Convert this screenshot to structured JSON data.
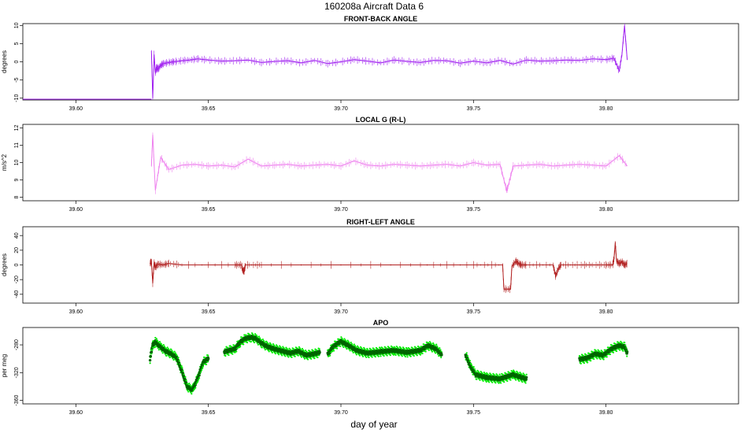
{
  "figure": {
    "title": "160208a   Aircraft Data 6",
    "xlabel": "day of year"
  },
  "chart_data": [
    {
      "type": "line",
      "title": "FRONT-BACK ANGLE",
      "ylabel": "degrees",
      "color": "#a020f0",
      "xlim": [
        39.58,
        39.85
      ],
      "ylim": [
        -10.5,
        10.5
      ],
      "x_ticks": [
        "39.60",
        "39.65",
        "39.70",
        "39.75",
        "39.80"
      ],
      "y_ticks": [
        "-10",
        "-5",
        "0",
        "5",
        "10"
      ],
      "series": [
        {
          "x": [
            39.6285,
            39.629,
            39.6295,
            39.63,
            39.6305,
            39.631,
            39.632,
            39.633,
            39.635,
            39.637,
            39.64,
            39.643,
            39.646,
            39.65,
            39.655,
            39.66,
            39.665,
            39.67,
            39.675,
            39.68,
            39.685,
            39.69,
            39.695,
            39.7,
            39.705,
            39.71,
            39.715,
            39.72,
            39.725,
            39.73,
            39.735,
            39.74,
            39.745,
            39.75,
            39.755,
            39.76,
            39.765,
            39.77,
            39.775,
            39.78,
            39.785,
            39.79,
            39.795,
            39.8,
            39.803,
            39.805,
            39.806,
            39.807,
            39.808
          ],
          "y": [
            3.0,
            -10.0,
            2.0,
            -3.0,
            -1.5,
            -2.0,
            -1.0,
            -0.5,
            -0.2,
            0.0,
            0.3,
            0.5,
            0.8,
            0.5,
            0.2,
            0.3,
            0.5,
            -0.2,
            0.1,
            0.3,
            -0.3,
            0.4,
            -0.5,
            0.0,
            0.6,
            0.2,
            -0.3,
            0.5,
            0.1,
            -0.2,
            0.4,
            0.3,
            -0.4,
            0.2,
            -0.3,
            0.4,
            -0.6,
            0.5,
            0.2,
            0.3,
            0.5,
            0.4,
            0.8,
            0.6,
            1.0,
            -2.5,
            2.0,
            10.0,
            0.5
          ]
        }
      ]
    },
    {
      "type": "line",
      "title": "LOCAL G (R-L)",
      "ylabel": "m/s^2",
      "color": "#ee82ee",
      "xlim": [
        39.58,
        39.85
      ],
      "ylim": [
        7.8,
        12.2
      ],
      "x_ticks": [
        "39.60",
        "39.65",
        "39.70",
        "39.75",
        "39.80"
      ],
      "y_ticks": [
        "8",
        "9",
        "10",
        "11",
        "12"
      ],
      "series": [
        {
          "x": [
            39.6285,
            39.629,
            39.63,
            39.632,
            39.635,
            39.64,
            39.645,
            39.65,
            39.655,
            39.66,
            39.665,
            39.67,
            39.675,
            39.68,
            39.685,
            39.69,
            39.695,
            39.7,
            39.705,
            39.71,
            39.715,
            39.72,
            39.725,
            39.73,
            39.735,
            39.74,
            39.745,
            39.75,
            39.755,
            39.76,
            39.7625,
            39.763,
            39.765,
            39.77,
            39.775,
            39.78,
            39.785,
            39.79,
            39.795,
            39.8,
            39.805,
            39.808
          ],
          "y": [
            9.8,
            11.6,
            8.4,
            10.3,
            9.6,
            9.85,
            9.9,
            9.8,
            9.85,
            9.75,
            10.2,
            9.8,
            9.85,
            9.9,
            9.8,
            9.85,
            9.9,
            9.8,
            10.1,
            9.85,
            9.8,
            9.9,
            9.85,
            9.8,
            9.85,
            9.9,
            9.8,
            10.0,
            9.85,
            9.9,
            8.4,
            8.6,
            9.8,
            9.85,
            9.9,
            9.8,
            9.85,
            9.9,
            9.85,
            9.8,
            10.4,
            9.8
          ]
        }
      ]
    },
    {
      "type": "line",
      "title": "RIGHT-LEFT ANGLE",
      "ylabel": "degrees",
      "color": "#b22222",
      "xlim": [
        39.58,
        39.85
      ],
      "ylim": [
        -52,
        52
      ],
      "x_ticks": [
        "39.60",
        "39.65",
        "39.70",
        "39.75",
        "39.80"
      ],
      "y_ticks": [
        "-40",
        "-20",
        "0",
        "20",
        "40"
      ],
      "series": [
        {
          "x": [
            39.628,
            39.6285,
            39.629,
            39.6295,
            39.63,
            39.631,
            39.633,
            39.635,
            39.64,
            39.66,
            39.6625,
            39.663,
            39.6635,
            39.664,
            39.67,
            39.7,
            39.73,
            39.75,
            39.761,
            39.7615,
            39.764,
            39.7645,
            39.766,
            39.767,
            39.768,
            39.77,
            39.78,
            39.781,
            39.782,
            39.783,
            39.79,
            39.795,
            39.8,
            39.8025,
            39.803,
            39.8035,
            39.804,
            39.805,
            39.806,
            39.807,
            39.808
          ],
          "y": [
            2,
            5,
            -25,
            3,
            -3,
            1,
            0,
            2,
            0,
            0,
            0,
            -8,
            -8,
            0,
            0,
            0,
            0,
            0,
            0,
            -33,
            -33,
            -2,
            5,
            2,
            0,
            0,
            0,
            -15,
            -5,
            0,
            0,
            0,
            0,
            0,
            8,
            30,
            5,
            2,
            4,
            0,
            2
          ]
        }
      ]
    },
    {
      "type": "scatter",
      "title": "APO",
      "ylabel": "per meg",
      "colors": {
        "bright": "#00ee00",
        "dark": "#006400"
      },
      "xlim": [
        39.58,
        39.85
      ],
      "ylim": [
        -365,
        -255
      ],
      "x_ticks": [
        "39.60",
        "39.65",
        "39.70",
        "39.75",
        "39.80"
      ],
      "y_ticks": [
        "-360",
        "-320",
        "-280"
      ],
      "segments": [
        {
          "x": [
            39.628,
            39.629,
            39.63,
            39.632,
            39.634,
            39.636,
            39.638,
            39.64,
            39.642,
            39.644,
            39.646,
            39.648,
            39.65
          ],
          "y": [
            -300,
            -280,
            -276,
            -283,
            -289,
            -293,
            -298,
            -318,
            -340,
            -345,
            -328,
            -305,
            -300
          ]
        },
        {
          "x": [
            39.656,
            39.658,
            39.66,
            39.662,
            39.664,
            39.666,
            39.668,
            39.67,
            39.672,
            39.675,
            39.678,
            39.681,
            39.684,
            39.687,
            39.69,
            39.692
          ],
          "y": [
            -290,
            -288,
            -286,
            -276,
            -271,
            -269,
            -271,
            -277,
            -282,
            -286,
            -289,
            -292,
            -289,
            -295,
            -293,
            -291
          ]
        },
        {
          "x": [
            39.695,
            39.697,
            39.7,
            39.703,
            39.706,
            39.71,
            39.715,
            39.72,
            39.725,
            39.73,
            39.733,
            39.736,
            39.738
          ],
          "y": [
            -294,
            -283,
            -275,
            -281,
            -288,
            -292,
            -290,
            -288,
            -291,
            -288,
            -281,
            -286,
            -294
          ]
        },
        {
          "x": [
            39.747,
            39.749,
            39.751,
            39.755,
            39.76,
            39.765,
            39.77
          ],
          "y": [
            -294,
            -312,
            -323,
            -327,
            -329,
            -323,
            -329
          ]
        },
        {
          "x": [
            39.79,
            39.793,
            39.796,
            39.799,
            39.802,
            39.805,
            39.807,
            39.808
          ],
          "y": [
            -301,
            -299,
            -293,
            -295,
            -286,
            -281,
            -283,
            -291
          ]
        }
      ]
    }
  ]
}
